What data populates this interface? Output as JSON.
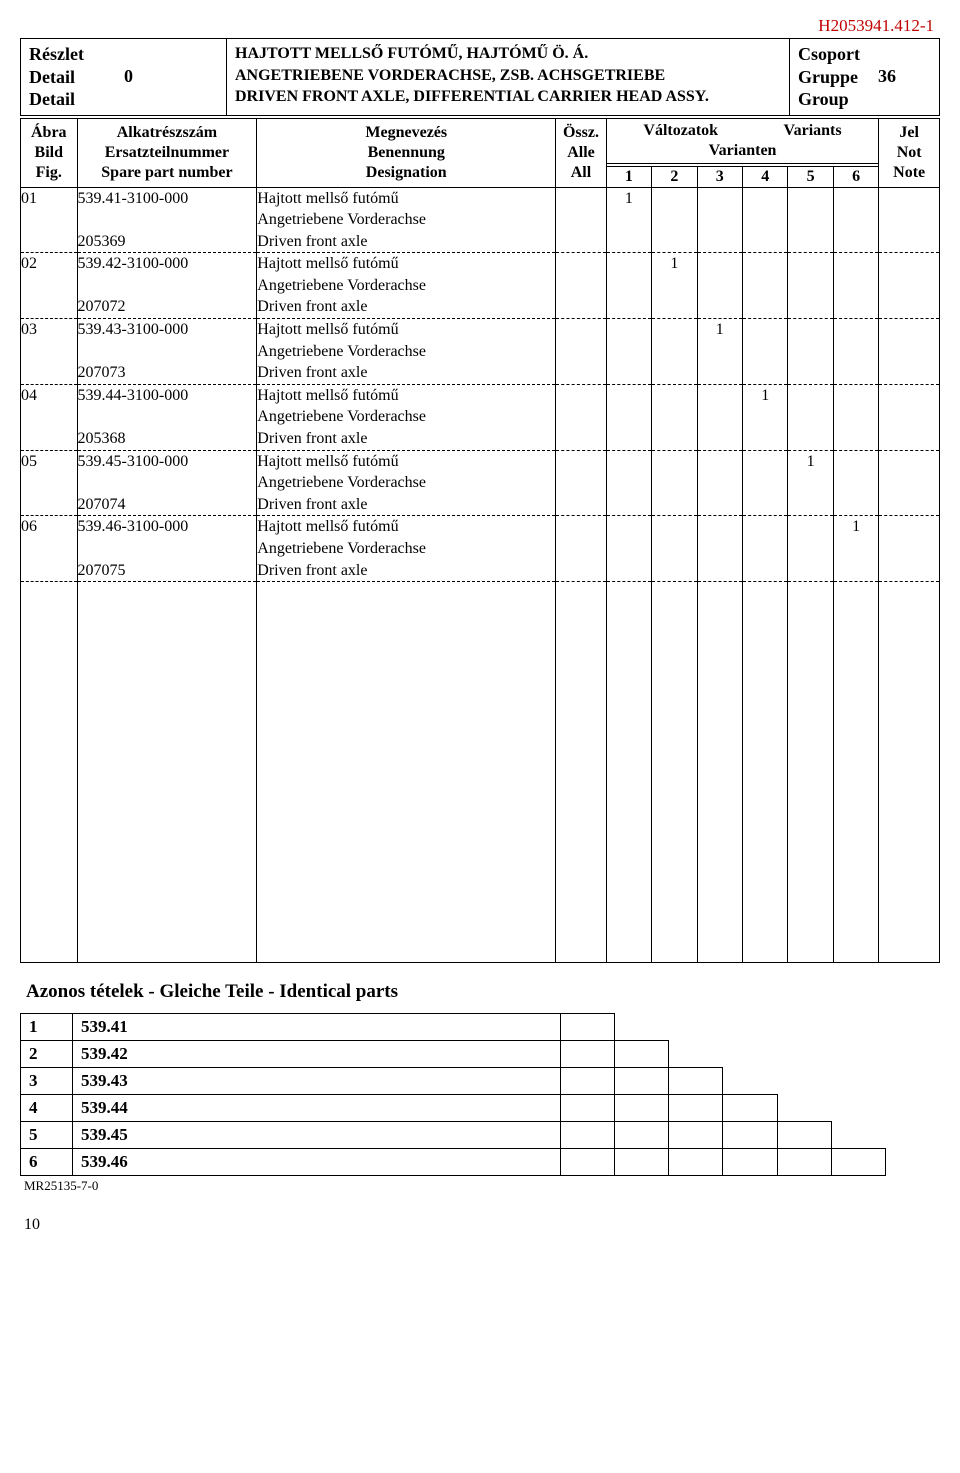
{
  "doc_id": "H2053941.412-1",
  "header": {
    "detail_labels": [
      "Részlet",
      "Detail",
      "Detail"
    ],
    "detail_num": "0",
    "title_lines": [
      "HAJTOTT MELLSŐ FUTÓMŰ, HAJTÓMŰ Ö. Á.",
      "ANGETRIEBENE VORDERACHSE, ZSB. ACHSGETRIEBE",
      "DRIVEN FRONT AXLE, DIFFERENTIAL CARRIER HEAD ASSY."
    ],
    "group_labels": [
      "Csoport",
      "Gruppe",
      "Group"
    ],
    "group_num": "36"
  },
  "column_headers": {
    "fig": [
      "Ábra",
      "Bild",
      "Fig."
    ],
    "part": [
      "Alkatrészszám",
      "Ersatzteilnummer",
      "Spare part number"
    ],
    "desig": [
      "Megnevezés",
      "Benennung",
      "Designation"
    ],
    "all": [
      "Össz.",
      "Alle",
      "All"
    ],
    "variants_top": [
      "Változatok",
      "Variants"
    ],
    "variants_mid": "Varianten",
    "var_nums": [
      "1",
      "2",
      "3",
      "4",
      "5",
      "6"
    ],
    "note": [
      "Jel",
      "Not",
      "Note"
    ]
  },
  "rows": [
    {
      "fig": "01",
      "part1": "539.41-3100-000",
      "part2": "205369",
      "desig": [
        "Hajtott mellső futómű",
        "Angetriebene Vorderachse",
        "Driven front axle"
      ],
      "variant_col": 0
    },
    {
      "fig": "02",
      "part1": "539.42-3100-000",
      "part2": "207072",
      "desig": [
        "Hajtott mellső futómű",
        "Angetriebene Vorderachse",
        "Driven front axle"
      ],
      "variant_col": 1
    },
    {
      "fig": "03",
      "part1": "539.43-3100-000",
      "part2": "207073",
      "desig": [
        "Hajtott mellső futómű",
        "Angetriebene Vorderachse",
        "Driven front axle"
      ],
      "variant_col": 2
    },
    {
      "fig": "04",
      "part1": "539.44-3100-000",
      "part2": "205368",
      "desig": [
        "Hajtott mellső futómű",
        "Angetriebene Vorderachse",
        "Driven front axle"
      ],
      "variant_col": 3
    },
    {
      "fig": "05",
      "part1": "539.45-3100-000",
      "part2": "207074",
      "desig": [
        "Hajtott mellső futómű",
        "Angetriebene Vorderachse",
        "Driven front axle"
      ],
      "variant_col": 4
    },
    {
      "fig": "06",
      "part1": "539.46-3100-000",
      "part2": "207075",
      "desig": [
        "Hajtott mellső futómű",
        "Angetriebene Vorderachse",
        "Driven front axle"
      ],
      "variant_col": 5
    }
  ],
  "variant_mark": "1",
  "identical": {
    "title": "Azonos tételek - Gleiche Teile - Identical parts",
    "items": [
      {
        "n": "1",
        "v": "539.41"
      },
      {
        "n": "2",
        "v": "539.42"
      },
      {
        "n": "3",
        "v": "539.43"
      },
      {
        "n": "4",
        "v": "539.44"
      },
      {
        "n": "5",
        "v": "539.45"
      },
      {
        "n": "6",
        "v": "539.46"
      }
    ]
  },
  "footer_code": "MR25135-7-0",
  "page_number": "10"
}
